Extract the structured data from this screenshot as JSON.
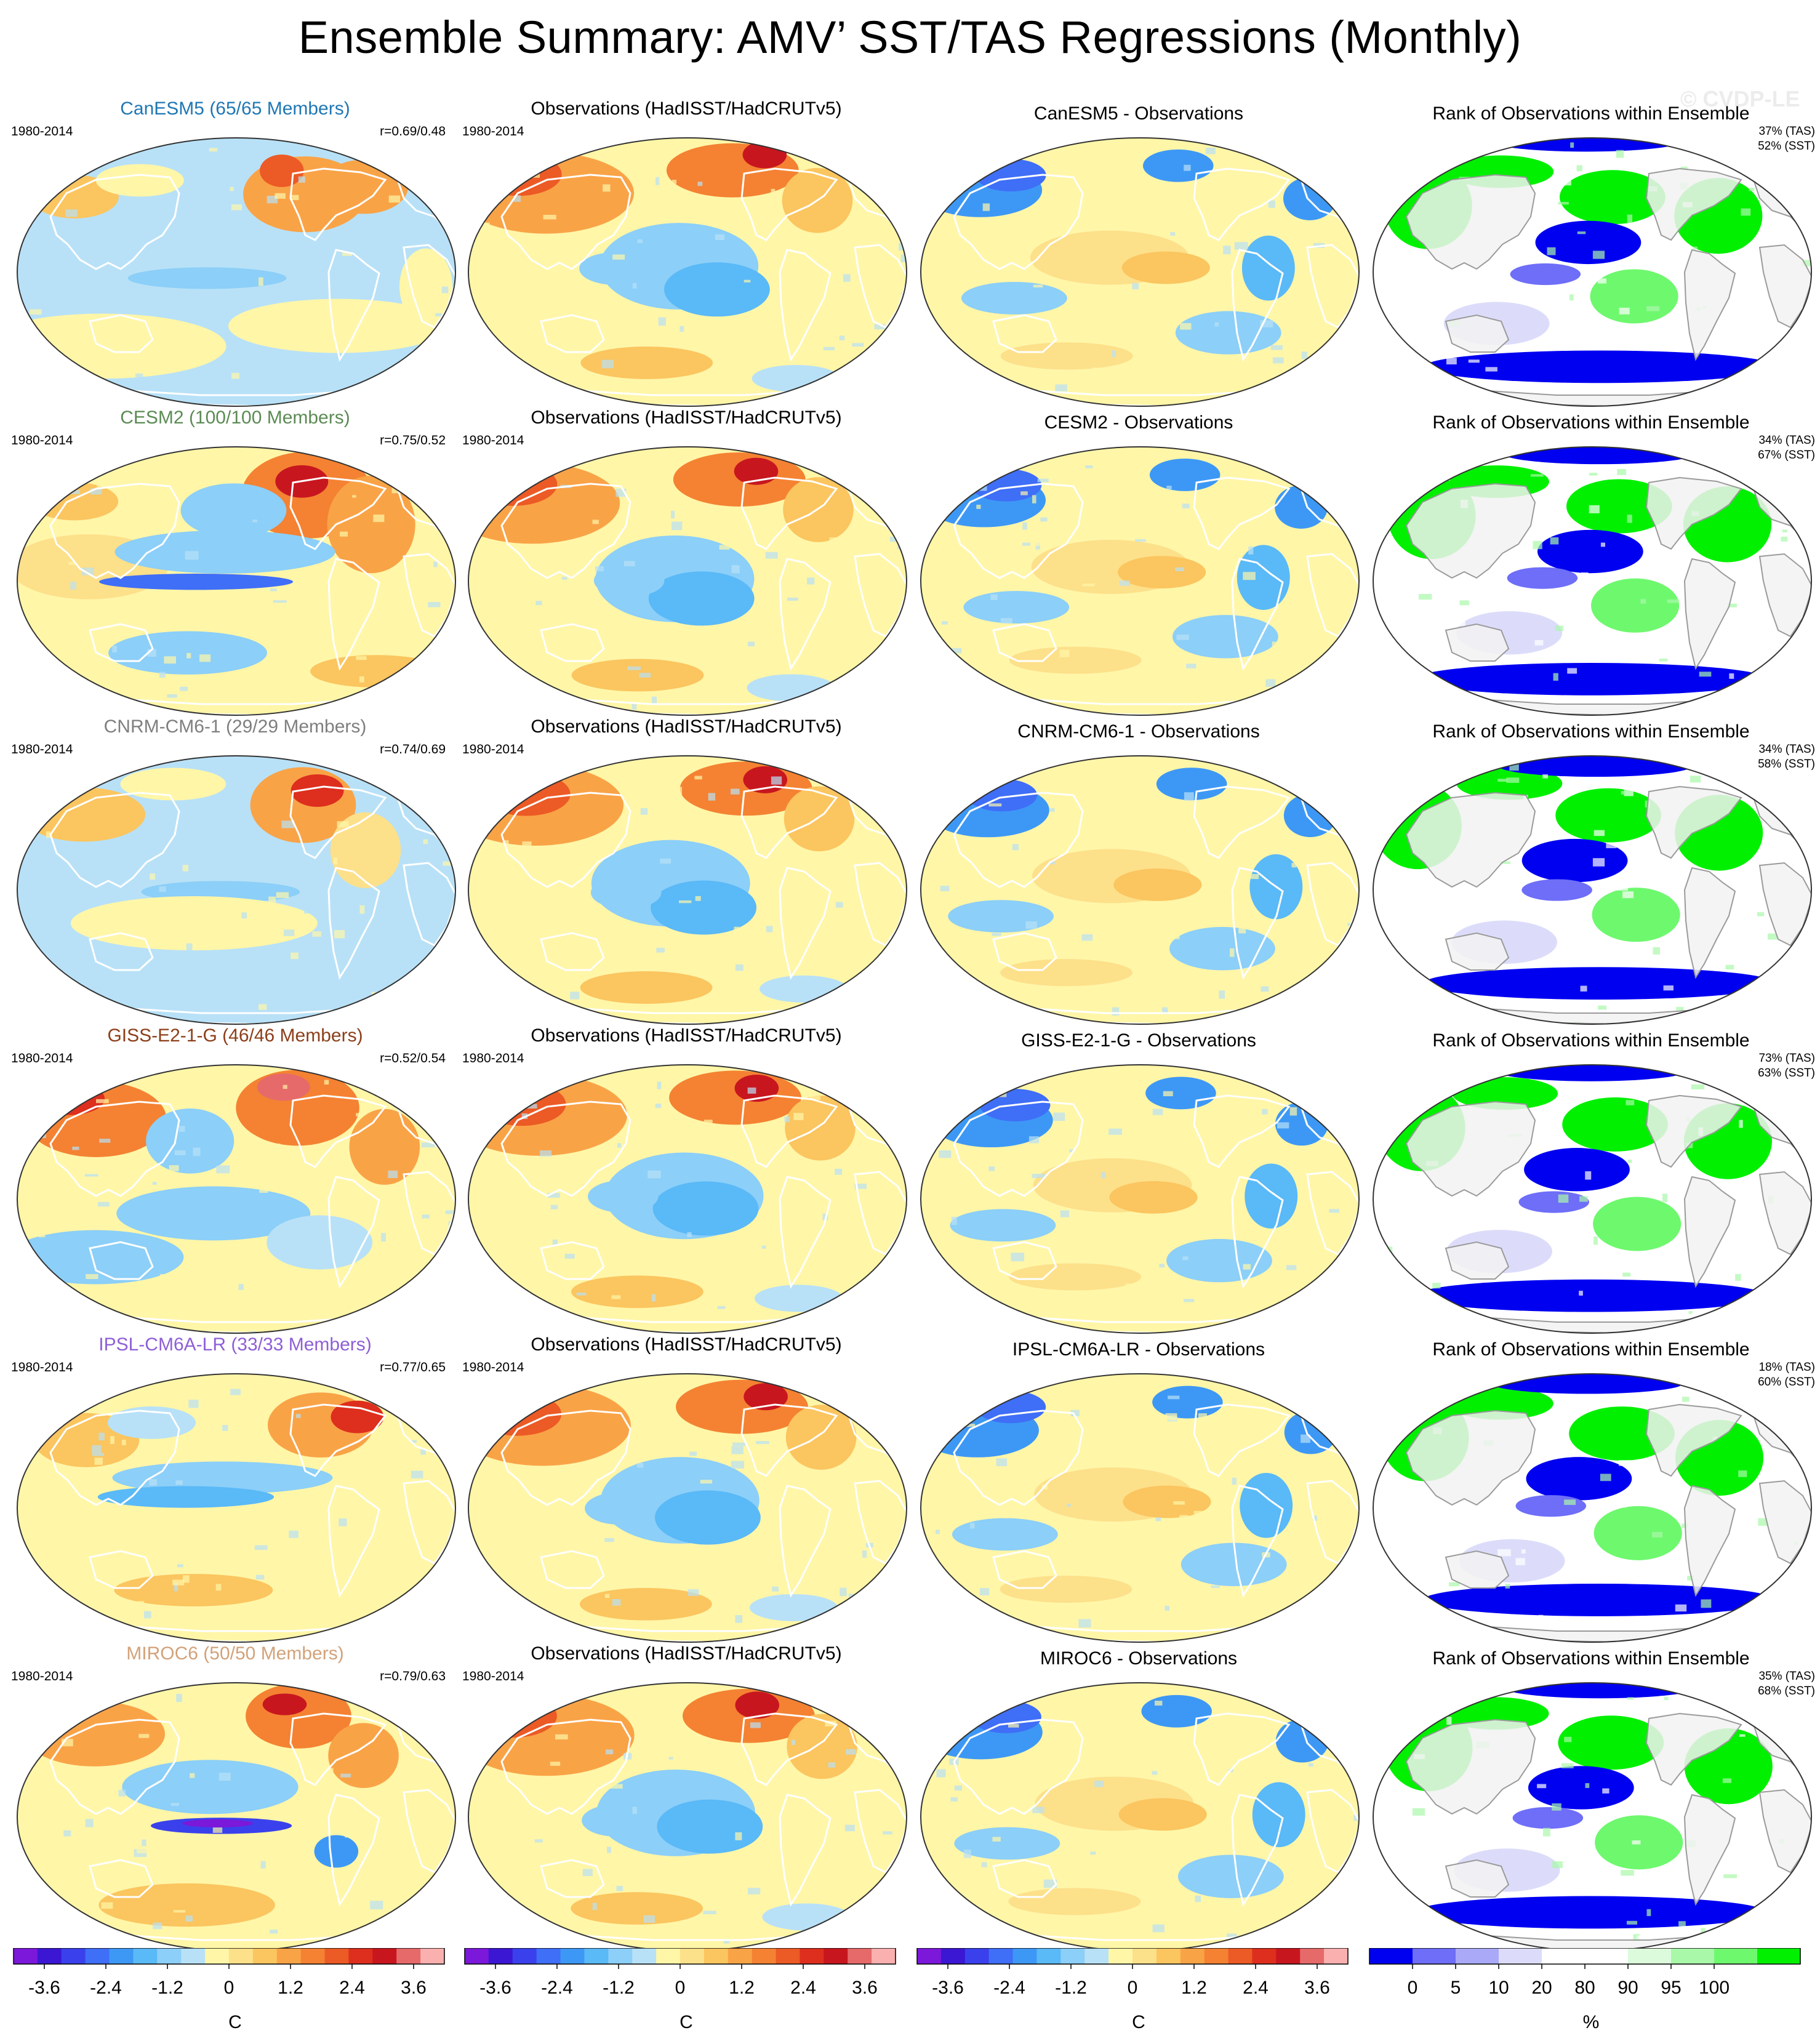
{
  "title": "Ensemble Summary: AMV’ SST/TAS Regressions (Monthly)",
  "watermark": "© CVDP-LE",
  "period": "1980-2014",
  "obs_title": "Observations (HadISST/HadCRUTv5)",
  "rank_title": "Rank of Observations within Ensemble",
  "colors": {
    "diverging": [
      "#7b18d9",
      "#3b17d4",
      "#3a41ec",
      "#3f6ef7",
      "#3d98f5",
      "#5ab9f7",
      "#8ccff8",
      "#b8e1f7",
      "#fff6a8",
      "#fde08a",
      "#fbc55f",
      "#f9a347",
      "#f48232",
      "#ec5a25",
      "#dd2e1e",
      "#c8161f",
      "#e66a6a",
      "#fbb0b0"
    ],
    "rank": [
      "#0000f0",
      "#6e6ef8",
      "#a9a9f8",
      "#dcdcfa",
      "#ffffff",
      "#ffffff",
      "#dcfadc",
      "#a9f8a9",
      "#6ef86e",
      "#00f000"
    ],
    "coast": "#9a9a9a",
    "land_fill": "#f2f2f2"
  },
  "rows": [
    {
      "model_title": "CanESM5 (65/65 Members)",
      "model_color": "#1f77b4",
      "corr": "r=0.69/0.48",
      "diff_title": "CanESM5 - Observations",
      "rank_tas": "37% (TAS)",
      "rank_sst": "52% (SST)"
    },
    {
      "model_title": "CESM2 (100/100 Members)",
      "model_color": "#5b8b54",
      "corr": "r=0.75/0.52",
      "diff_title": "CESM2 - Observations",
      "rank_tas": "34% (TAS)",
      "rank_sst": "67% (SST)"
    },
    {
      "model_title": "CNRM-CM6-1 (29/29 Members)",
      "model_color": "#7f7f7f",
      "corr": "r=0.74/0.69",
      "diff_title": "CNRM-CM6-1 - Observations",
      "rank_tas": "34% (TAS)",
      "rank_sst": "58% (SST)"
    },
    {
      "model_title": "GISS-E2-1-G (46/46 Members)",
      "model_color": "#8c3f1a",
      "corr": "r=0.52/0.54",
      "diff_title": "GISS-E2-1-G - Observations",
      "rank_tas": "73% (TAS)",
      "rank_sst": "63% (SST)"
    },
    {
      "model_title": "IPSL-CM6A-LR (33/33 Members)",
      "model_color": "#8e5fd6",
      "corr": "r=0.77/0.65",
      "diff_title": "IPSL-CM6A-LR - Observations",
      "rank_tas": "18% (TAS)",
      "rank_sst": "60% (SST)"
    },
    {
      "model_title": "MIROC6 (50/50 Members)",
      "model_color": "#d2a27a",
      "corr": "r=0.79/0.63",
      "diff_title": "MIROC6 - Observations",
      "rank_tas": "35% (TAS)",
      "rank_sst": "68% (SST)"
    }
  ],
  "chart_data": {
    "type": "heatmap",
    "title": "Ensemble Summary: AMV’ SST/TAS Regressions (Monthly)",
    "colorbars": [
      {
        "unit": "C",
        "tick_labels": [
          "-3.6",
          "-2.4",
          "-1.2",
          "0",
          "1.2",
          "2.4",
          "3.6"
        ],
        "ticks": [
          -3.6,
          -2.4,
          -1.2,
          0,
          1.2,
          2.4,
          3.6
        ],
        "range": [
          -4.2,
          4.2
        ],
        "levels": 18
      },
      {
        "unit": "C",
        "tick_labels": [
          "-3.6",
          "-2.4",
          "-1.2",
          "0",
          "1.2",
          "2.4",
          "3.6"
        ],
        "ticks": [
          -3.6,
          -2.4,
          -1.2,
          0,
          1.2,
          2.4,
          3.6
        ],
        "range": [
          -4.2,
          4.2
        ],
        "levels": 18
      },
      {
        "unit": "C",
        "tick_labels": [
          "-3.6",
          "-2.4",
          "-1.2",
          "0",
          "1.2",
          "2.4",
          "3.6"
        ],
        "ticks": [
          -3.6,
          -2.4,
          -1.2,
          0,
          1.2,
          2.4,
          3.6
        ],
        "range": [
          -4.2,
          4.2
        ],
        "levels": 18
      },
      {
        "unit": "%",
        "tick_labels": [
          "0",
          "5",
          "10",
          "20",
          "80",
          "90",
          "95",
          "100"
        ],
        "ticks": [
          0,
          5,
          10,
          20,
          80,
          90,
          95,
          100
        ],
        "levels": 10
      }
    ]
  }
}
